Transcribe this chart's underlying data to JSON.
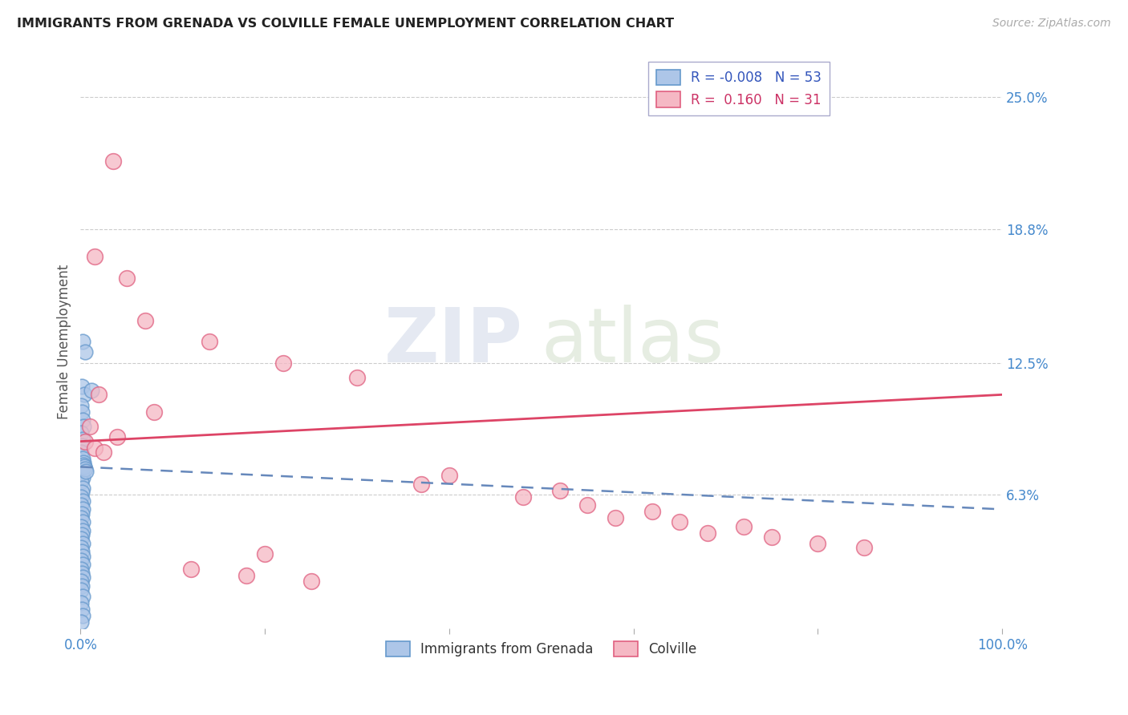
{
  "title": "IMMIGRANTS FROM GRENADA VS COLVILLE FEMALE UNEMPLOYMENT CORRELATION CHART",
  "source": "Source: ZipAtlas.com",
  "ylabel": "Female Unemployment",
  "xlim": [
    0,
    100
  ],
  "ylim": [
    0,
    27
  ],
  "y_ticks": [
    6.3,
    12.5,
    18.8,
    25.0
  ],
  "legend_blue_r": "-0.008",
  "legend_blue_n": "53",
  "legend_pink_r": "0.160",
  "legend_pink_n": "31",
  "blue_color": "#adc6e8",
  "blue_edge": "#6699cc",
  "pink_color": "#f5b8c4",
  "pink_edge": "#e06080",
  "blue_line_color": "#6688bb",
  "pink_line_color": "#dd4466",
  "watermark_top": "ZIP",
  "watermark_bot": "atlas",
  "blue_slope": -0.02,
  "blue_intercept": 7.6,
  "pink_slope": 0.022,
  "pink_intercept": 8.8,
  "blue_dots": [
    [
      0.2,
      13.5
    ],
    [
      0.5,
      13.0
    ],
    [
      0.15,
      11.4
    ],
    [
      0.4,
      11.0
    ],
    [
      0.1,
      10.5
    ],
    [
      0.15,
      10.2
    ],
    [
      0.2,
      9.8
    ],
    [
      0.3,
      9.5
    ],
    [
      0.1,
      9.2
    ],
    [
      0.2,
      8.9
    ],
    [
      0.15,
      8.6
    ],
    [
      0.1,
      8.3
    ],
    [
      0.2,
      8.0
    ],
    [
      0.3,
      7.8
    ],
    [
      0.1,
      7.5
    ],
    [
      0.15,
      7.3
    ],
    [
      0.2,
      7.1
    ],
    [
      0.1,
      6.9
    ],
    [
      0.2,
      6.6
    ],
    [
      0.15,
      6.4
    ],
    [
      0.1,
      6.2
    ],
    [
      0.2,
      6.0
    ],
    [
      0.1,
      5.8
    ],
    [
      0.2,
      5.6
    ],
    [
      0.15,
      5.4
    ],
    [
      0.1,
      5.2
    ],
    [
      0.2,
      5.0
    ],
    [
      0.1,
      4.8
    ],
    [
      0.2,
      4.6
    ],
    [
      0.15,
      4.4
    ],
    [
      0.1,
      4.2
    ],
    [
      0.2,
      4.0
    ],
    [
      0.1,
      3.8
    ],
    [
      0.15,
      3.6
    ],
    [
      0.2,
      3.4
    ],
    [
      0.1,
      3.2
    ],
    [
      0.2,
      3.0
    ],
    [
      0.1,
      2.8
    ],
    [
      0.15,
      2.6
    ],
    [
      0.2,
      2.4
    ],
    [
      0.1,
      2.2
    ],
    [
      0.15,
      2.0
    ],
    [
      0.1,
      1.8
    ],
    [
      0.2,
      1.5
    ],
    [
      0.1,
      1.2
    ],
    [
      0.15,
      0.9
    ],
    [
      0.2,
      0.6
    ],
    [
      0.1,
      0.3
    ],
    [
      0.3,
      7.7
    ],
    [
      0.4,
      7.6
    ],
    [
      0.5,
      7.5
    ],
    [
      0.6,
      7.4
    ],
    [
      1.2,
      11.2
    ]
  ],
  "pink_dots": [
    [
      3.5,
      22.0
    ],
    [
      1.5,
      17.5
    ],
    [
      5.0,
      16.5
    ],
    [
      7.0,
      14.5
    ],
    [
      14.0,
      13.5
    ],
    [
      22.0,
      12.5
    ],
    [
      30.0,
      11.8
    ],
    [
      2.0,
      11.0
    ],
    [
      8.0,
      10.2
    ],
    [
      1.0,
      9.5
    ],
    [
      4.0,
      9.0
    ],
    [
      0.5,
      8.8
    ],
    [
      1.5,
      8.5
    ],
    [
      2.5,
      8.3
    ],
    [
      40.0,
      7.2
    ],
    [
      37.0,
      6.8
    ],
    [
      52.0,
      6.5
    ],
    [
      48.0,
      6.2
    ],
    [
      55.0,
      5.8
    ],
    [
      62.0,
      5.5
    ],
    [
      58.0,
      5.2
    ],
    [
      65.0,
      5.0
    ],
    [
      72.0,
      4.8
    ],
    [
      68.0,
      4.5
    ],
    [
      75.0,
      4.3
    ],
    [
      80.0,
      4.0
    ],
    [
      85.0,
      3.8
    ],
    [
      20.0,
      3.5
    ],
    [
      12.0,
      2.8
    ],
    [
      18.0,
      2.5
    ],
    [
      25.0,
      2.2
    ]
  ]
}
